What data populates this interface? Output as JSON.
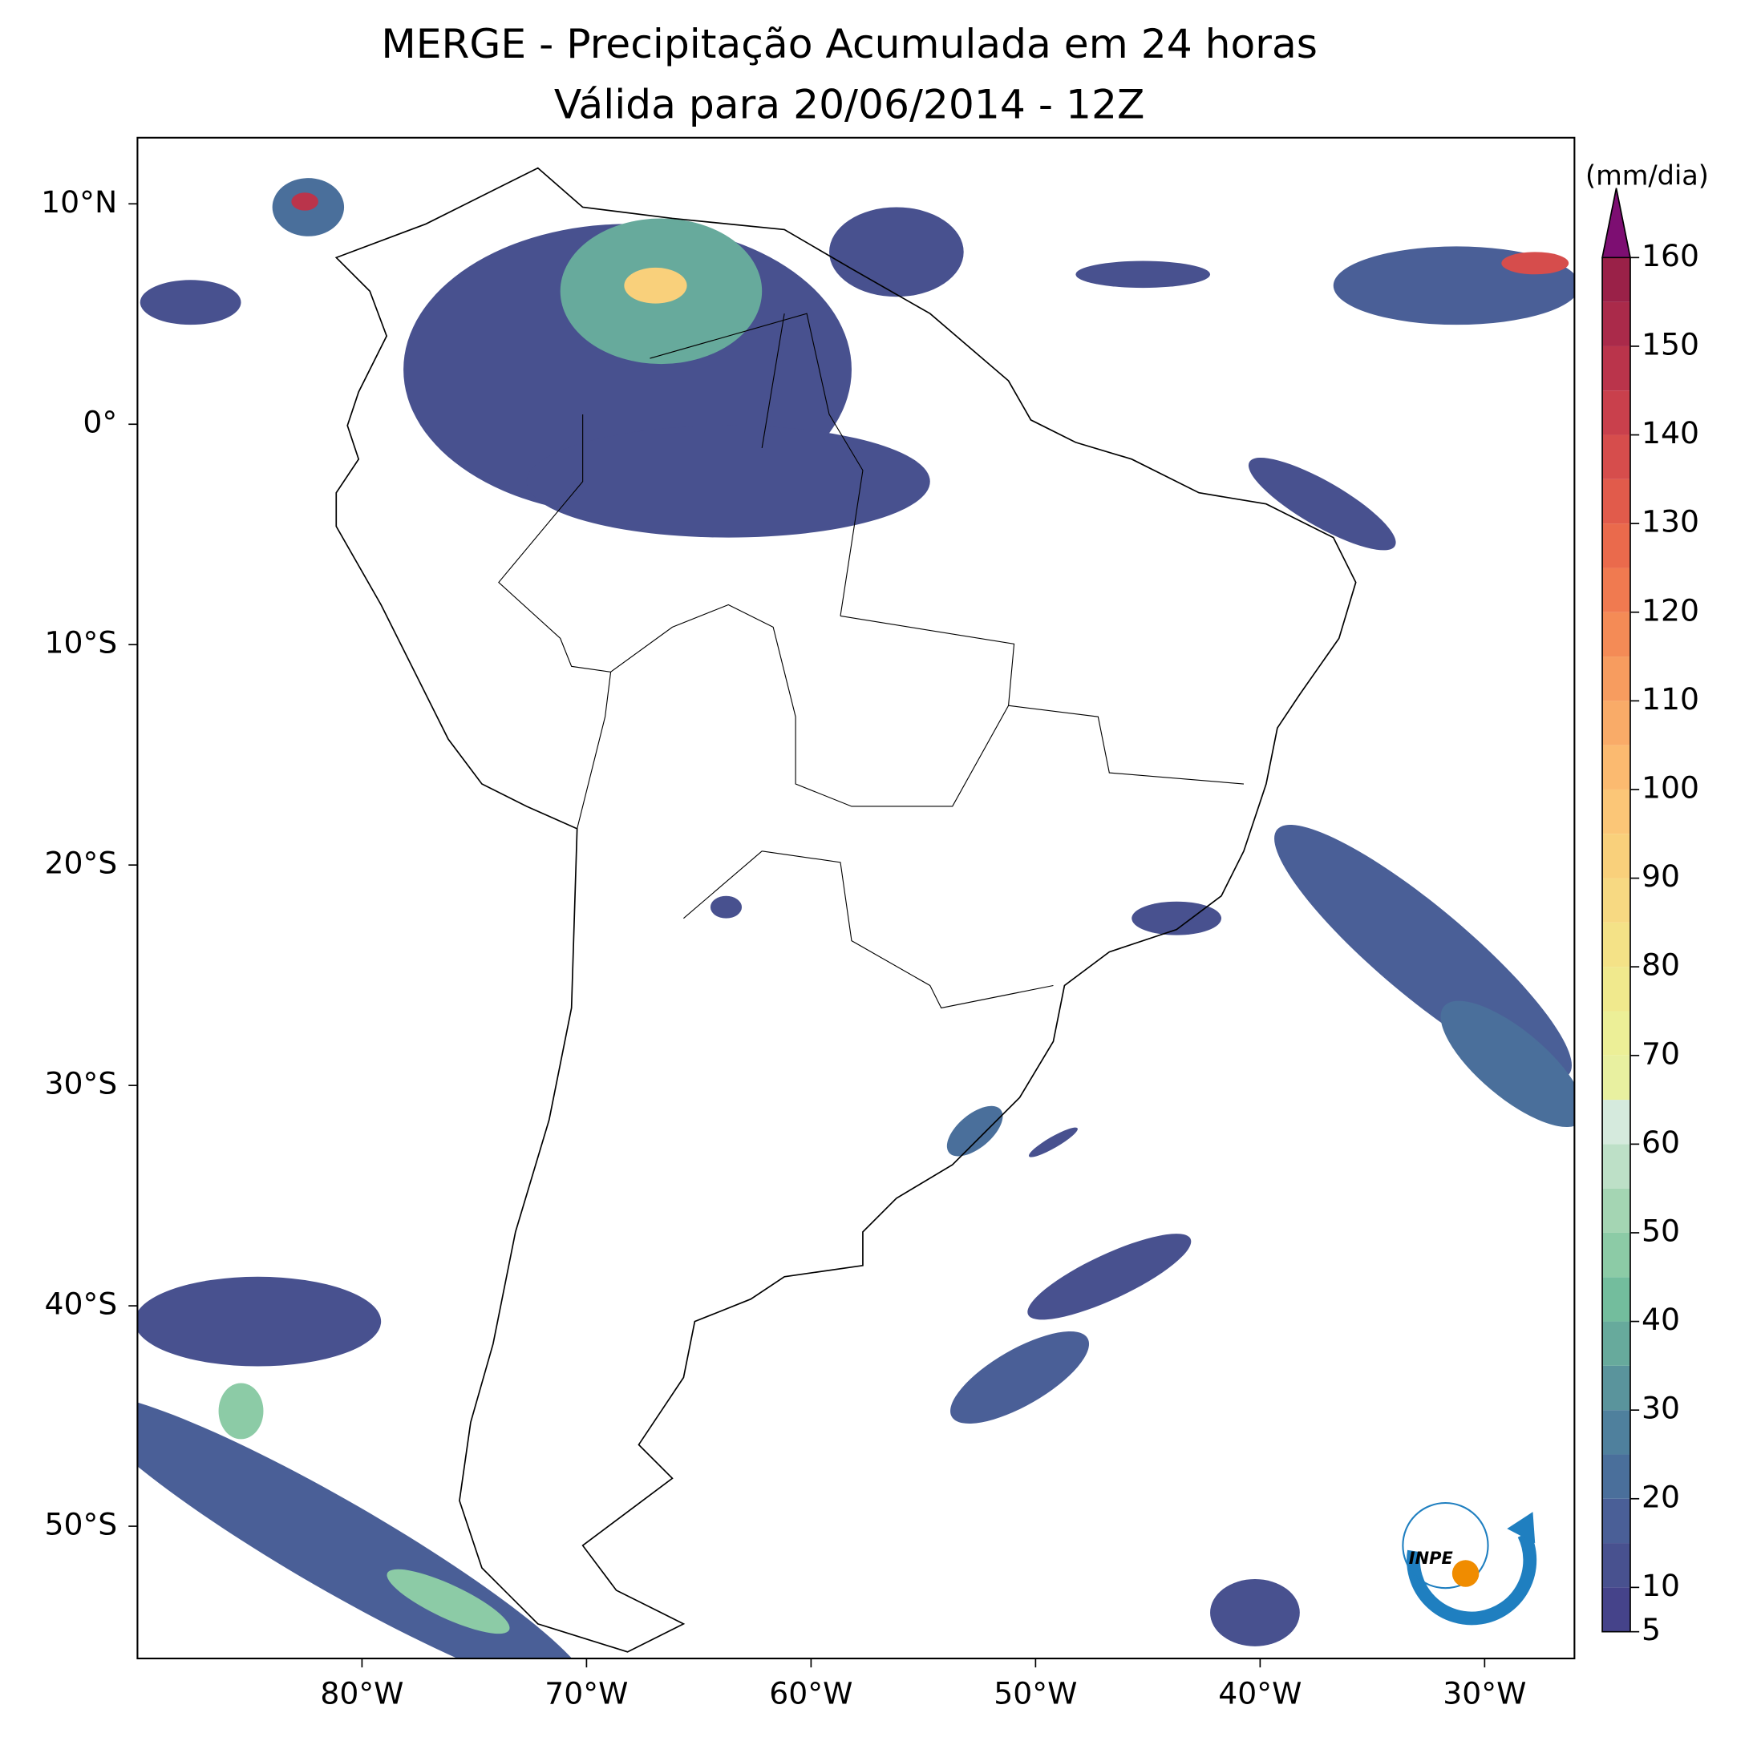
{
  "title": "MERGE - Precipitação Acumulada em 24 horas",
  "subtitle": "Válida para 20/06/2014 - 12Z",
  "map": {
    "xlim": [
      -90,
      -26
    ],
    "ylim": [
      -56,
      13
    ],
    "xticks": [
      {
        "value": -80,
        "label": "80°W"
      },
      {
        "value": -70,
        "label": "70°W"
      },
      {
        "value": -60,
        "label": "60°W"
      },
      {
        "value": -50,
        "label": "50°W"
      },
      {
        "value": -40,
        "label": "40°W"
      },
      {
        "value": -30,
        "label": "30°W"
      }
    ],
    "yticks": [
      {
        "value": 10,
        "label": "10°N"
      },
      {
        "value": 0,
        "label": "0°"
      },
      {
        "value": -10,
        "label": "10°S"
      },
      {
        "value": -20,
        "label": "20°S"
      },
      {
        "value": -30,
        "label": "30°S"
      },
      {
        "value": -40,
        "label": "40°S"
      },
      {
        "value": -50,
        "label": "50°S"
      }
    ]
  },
  "colorbar": {
    "label": "(mm/dia)",
    "ticks": [
      5,
      10,
      20,
      30,
      40,
      50,
      60,
      70,
      80,
      90,
      100,
      110,
      120,
      130,
      140,
      150,
      160
    ],
    "levels": [
      5,
      10,
      15,
      20,
      25,
      30,
      35,
      40,
      45,
      50,
      55,
      60,
      65,
      70,
      75,
      80,
      85,
      90,
      95,
      100,
      105,
      110,
      115,
      120,
      125,
      130,
      135,
      140,
      145,
      150,
      155,
      160
    ],
    "colors": [
      "#45438a",
      "#48518f",
      "#4a5f97",
      "#4a6f9b",
      "#4f809d",
      "#5a949c",
      "#67aa9c",
      "#73bd9d",
      "#8ccba6",
      "#a4d5b3",
      "#bde0c7",
      "#d5eadd",
      "#e8f0a0",
      "#ecef97",
      "#f0e98d",
      "#f4e287",
      "#f7d982",
      "#f9d07b",
      "#fbc677",
      "#fbba70",
      "#f9ab68",
      "#f79c5f",
      "#f48b56",
      "#f07a50",
      "#ea6a4c",
      "#e15b4b",
      "#d64d4c",
      "#c9404c",
      "#ba344b",
      "#aa2a4a",
      "#9a2148"
    ],
    "extend_color": "#7d0e72"
  },
  "logo_text": "INPE"
}
